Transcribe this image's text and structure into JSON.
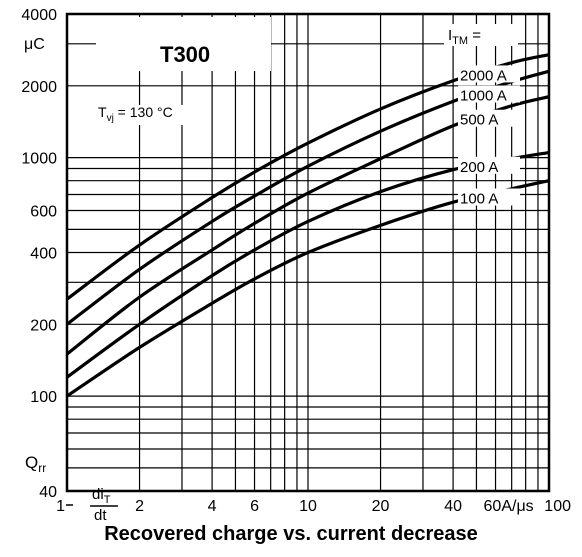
{
  "chart_data": {
    "type": "line",
    "caption": "Recovered charge vs. current decrease",
    "device_label": "T300",
    "condition": {
      "symbol": "T",
      "subscript": "vj",
      "text": " = 130 °C"
    },
    "ylabel": {
      "symbol": "Q",
      "subscript": "rr"
    },
    "yunit": "μC",
    "xlabel": {
      "num": "di",
      "num_sub": "T",
      "den": "dt"
    },
    "xunit": "60A/μs",
    "legend_title": {
      "symbol": "I",
      "subscript": "TM",
      "suffix": " ="
    },
    "x_scale": "log",
    "y_scale": "log",
    "xlim": [
      1,
      100
    ],
    "ylim": [
      40,
      4000
    ],
    "grid": true,
    "x_ticks": [
      {
        "value": 1,
        "label": "1"
      },
      {
        "value": 2,
        "label": "2"
      },
      {
        "value": 4,
        "label": "4"
      },
      {
        "value": 6,
        "label": "6"
      },
      {
        "value": 10,
        "label": "10"
      },
      {
        "value": 20,
        "label": "20"
      },
      {
        "value": 40,
        "label": "40"
      },
      {
        "value": 60,
        "label": "60A/μs"
      },
      {
        "value": 100,
        "label": "100"
      }
    ],
    "y_ticks": [
      {
        "value": 40,
        "label": "40"
      },
      {
        "value": 100,
        "label": "100"
      },
      {
        "value": 200,
        "label": "200"
      },
      {
        "value": 400,
        "label": "400"
      },
      {
        "value": 600,
        "label": "600"
      },
      {
        "value": 1000,
        "label": "1000"
      },
      {
        "value": 2000,
        "label": "2000"
      },
      {
        "value": 4000,
        "label": "4000"
      }
    ],
    "x_grid": [
      1,
      2,
      3,
      4,
      5,
      6,
      7,
      8,
      9,
      10,
      20,
      30,
      40,
      50,
      60,
      70,
      80,
      90,
      100
    ],
    "y_grid": [
      40,
      50,
      60,
      70,
      80,
      90,
      100,
      200,
      300,
      400,
      500,
      600,
      700,
      800,
      900,
      1000,
      2000,
      3000,
      4000
    ],
    "series": [
      {
        "name": "2000 A",
        "x": [
          1,
          2,
          4,
          6,
          10,
          20,
          40,
          70,
          100
        ],
        "y": [
          255,
          430,
          680,
          870,
          1150,
          1600,
          2100,
          2500,
          2700
        ]
      },
      {
        "name": "1000 A",
        "x": [
          1,
          2,
          4,
          6,
          10,
          20,
          40,
          70,
          100
        ],
        "y": [
          200,
          340,
          540,
          690,
          920,
          1290,
          1720,
          2080,
          2300
        ]
      },
      {
        "name": "500 A",
        "x": [
          1,
          2,
          4,
          6,
          10,
          20,
          40,
          70,
          100
        ],
        "y": [
          150,
          260,
          410,
          530,
          710,
          990,
          1360,
          1650,
          1800
        ]
      },
      {
        "name": "200 A",
        "x": [
          1,
          2,
          4,
          6,
          10,
          20,
          40,
          70,
          100
        ],
        "y": [
          120,
          200,
          320,
          410,
          540,
          720,
          890,
          990,
          1050
        ]
      },
      {
        "name": "100 A",
        "x": [
          1,
          2,
          4,
          6,
          10,
          20,
          40,
          70,
          100
        ],
        "y": [
          100,
          160,
          245,
          310,
          400,
          520,
          650,
          740,
          800
        ]
      }
    ]
  }
}
